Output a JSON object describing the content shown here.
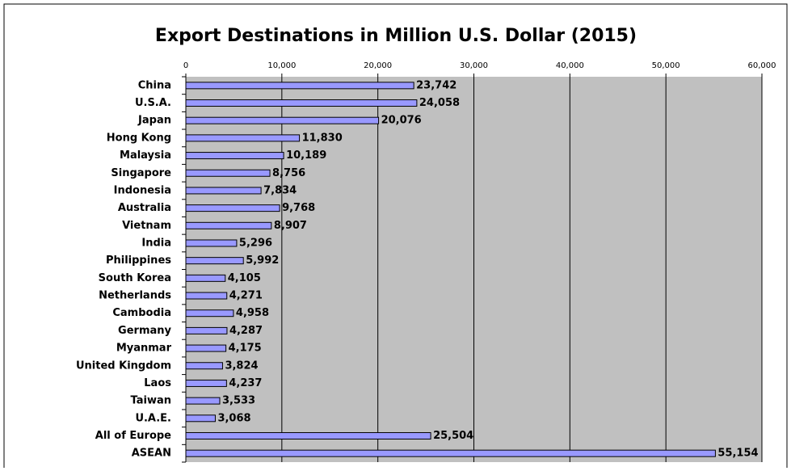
{
  "chart_data": {
    "type": "bar",
    "orientation": "horizontal",
    "title": "Export Destinations in Million U.S. Dollar (2015)",
    "categories": [
      "China",
      "U.S.A.",
      "Japan",
      "Hong Kong",
      "Malaysia",
      "Singapore",
      "Indonesia",
      "Australia",
      "Vietnam",
      "India",
      "Philippines",
      "South Korea",
      "Netherlands",
      "Cambodia",
      "Germany",
      "Myanmar",
      "United Kingdom",
      "Laos",
      "Taiwan",
      "U.A.E.",
      "All of Europe",
      "ASEAN"
    ],
    "values": [
      23742,
      24058,
      20076,
      11830,
      10189,
      8756,
      7834,
      9768,
      8907,
      5296,
      5992,
      4105,
      4271,
      4958,
      4287,
      4175,
      3824,
      4237,
      3533,
      3068,
      25504,
      55154
    ],
    "value_labels": [
      "23,742",
      "24,058",
      "20,076",
      "11,830",
      "10,189",
      "8,756",
      "7,834",
      "9,768",
      "8,907",
      "5,296",
      "5,992",
      "4,105",
      "4,271",
      "4,958",
      "4,287",
      "4,175",
      "3,824",
      "4,237",
      "3,533",
      "3,068",
      "25,504",
      "55,154"
    ],
    "color": "#9999ff",
    "xlim": [
      0,
      60000
    ],
    "xticks": [
      0,
      {
        "value": 10000,
        "label": "10,000"
      },
      {
        "value": 20000,
        "label": "20,000"
      },
      {
        "value": 30000,
        "label": "30,000"
      },
      {
        "value": 40000,
        "label": "40,000"
      },
      {
        "value": 50000,
        "label": "50,000"
      },
      {
        "value": 60000,
        "label": "60,000"
      }
    ],
    "grid": true
  }
}
